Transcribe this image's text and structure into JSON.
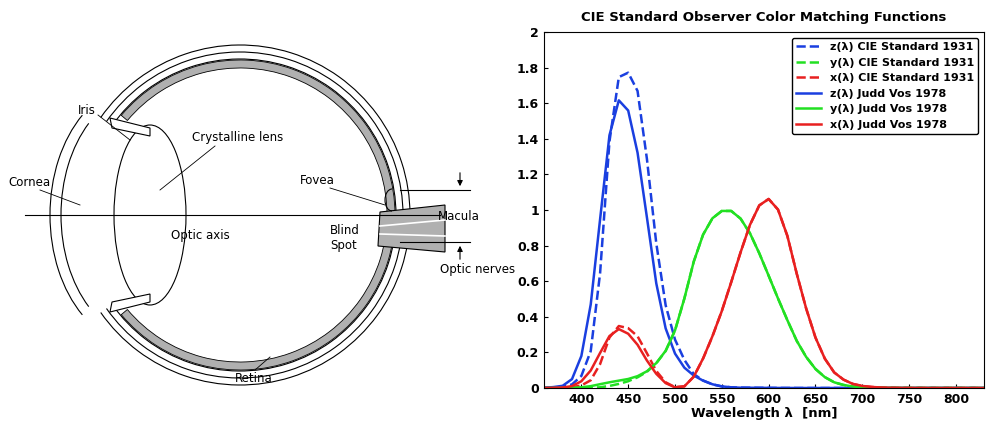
{
  "diagram": {
    "labels": {
      "iris": "Iris",
      "lens": "Crystalline lens",
      "cornea": "Cornea",
      "fovea": "Fovea",
      "macula": "Macula",
      "optic_axis": "Optic axis",
      "blind_spot": "Blind\nSpot",
      "optic_nerves": "Optic nerves",
      "retina": "Retina"
    }
  },
  "chart_data": {
    "type": "line",
    "title": "CIE Standard Observer Color Matching Functions",
    "x_label": "Wavelength λ  [nm]",
    "x": [
      360,
      370,
      380,
      390,
      400,
      410,
      420,
      430,
      440,
      450,
      460,
      470,
      480,
      490,
      500,
      510,
      520,
      530,
      540,
      550,
      560,
      570,
      580,
      590,
      600,
      610,
      620,
      630,
      640,
      650,
      660,
      670,
      680,
      690,
      700,
      710,
      720,
      730,
      740,
      750,
      760,
      770,
      780,
      790,
      800,
      810,
      820,
      830
    ],
    "xlim": [
      360,
      830
    ],
    "xticks": [
      400,
      450,
      500,
      550,
      600,
      650,
      700,
      750,
      800
    ],
    "ylim": [
      0,
      2
    ],
    "yticks": [
      0,
      0.2,
      0.4,
      0.6,
      0.8,
      1,
      1.2,
      1.4,
      1.6,
      1.8,
      2
    ],
    "grid": false,
    "legend": "upper right",
    "series": [
      {
        "name": "z(λ) CIE Standard 1931",
        "color": "#1a3fe0",
        "line_style": "dashed",
        "values": [
          0.0006,
          0.0019,
          0.0065,
          0.0201,
          0.0679,
          0.2074,
          0.6456,
          1.3856,
          1.7471,
          1.7721,
          1.6692,
          1.2876,
          0.813,
          0.4652,
          0.272,
          0.1582,
          0.0782,
          0.0422,
          0.0203,
          0.0087,
          0.0039,
          0.0021,
          0.0017,
          0.0011,
          0.0008,
          0.0003,
          0.0002,
          0,
          0,
          0,
          0,
          0,
          0,
          0,
          0,
          0,
          0,
          0,
          0,
          0,
          0,
          0,
          0,
          0,
          0,
          0,
          0,
          0
        ]
      },
      {
        "name": "y(λ) CIE Standard 1931",
        "color": "#22e022",
        "line_style": "dashed",
        "values": [
          0,
          0,
          0,
          0.0001,
          0.0004,
          0.0012,
          0.004,
          0.0116,
          0.023,
          0.038,
          0.06,
          0.091,
          0.139,
          0.208,
          0.323,
          0.503,
          0.71,
          0.862,
          0.954,
          0.995,
          0.995,
          0.952,
          0.87,
          0.757,
          0.631,
          0.503,
          0.381,
          0.265,
          0.175,
          0.107,
          0.061,
          0.032,
          0.017,
          0.0082,
          0.0041,
          0.0021,
          0.001,
          0.0005,
          0.0002,
          0.0001,
          0.0001,
          0,
          0,
          0,
          0,
          0,
          0,
          0
        ]
      },
      {
        "name": "x(λ) CIE Standard 1931",
        "color": "#e82020",
        "line_style": "dashed",
        "values": [
          0.0001,
          0.0004,
          0.0014,
          0.0042,
          0.0143,
          0.0435,
          0.1344,
          0.2839,
          0.3483,
          0.3362,
          0.2908,
          0.1954,
          0.0956,
          0.032,
          0.0049,
          0.0093,
          0.0633,
          0.1655,
          0.2904,
          0.4334,
          0.5945,
          0.7621,
          0.9163,
          1.0263,
          1.0622,
          1.0026,
          0.8544,
          0.6424,
          0.4479,
          0.2835,
          0.1649,
          0.0874,
          0.0468,
          0.0227,
          0.0114,
          0.0058,
          0.0029,
          0.0014,
          0.0007,
          0.0003,
          0.0002,
          0.0001,
          0,
          0,
          0,
          0,
          0,
          0
        ]
      },
      {
        "name": "z(λ) Judd Vos 1978",
        "color": "#1a3fe0",
        "line_style": "solid",
        "values": [
          0.0013,
          0.0051,
          0.0123,
          0.05,
          0.1798,
          0.4696,
          0.9485,
          1.4202,
          1.6165,
          1.5594,
          1.3224,
          0.9587,
          0.588,
          0.3351,
          0.1935,
          0.1142,
          0.0702,
          0.0412,
          0.0209,
          0.0091,
          0.0037,
          0.0017,
          0.0014,
          0.001,
          0.0007,
          0.0003,
          0.0002,
          0,
          0,
          0,
          0,
          0,
          0,
          0,
          0,
          0,
          0,
          0,
          0,
          0,
          0,
          0,
          0,
          0,
          0,
          0,
          0,
          0
        ]
      },
      {
        "name": "y(λ) Judd Vos 1978",
        "color": "#22e022",
        "line_style": "solid",
        "values": [
          0,
          0.0001,
          0.0003,
          0.0011,
          0.004,
          0.0104,
          0.0214,
          0.032,
          0.0414,
          0.0506,
          0.0665,
          0.094,
          0.1399,
          0.209,
          0.324,
          0.503,
          0.71,
          0.862,
          0.954,
          0.995,
          0.995,
          0.952,
          0.87,
          0.757,
          0.631,
          0.503,
          0.381,
          0.265,
          0.175,
          0.107,
          0.061,
          0.032,
          0.017,
          0.0082,
          0.0041,
          0.0021,
          0.001,
          0.0005,
          0.0002,
          0.0001,
          0.0001,
          0,
          0,
          0,
          0,
          0,
          0,
          0
        ]
      },
      {
        "name": "x(λ) Judd Vos 1978",
        "color": "#e82020",
        "line_style": "solid",
        "values": [
          0.0003,
          0.0011,
          0.0027,
          0.0106,
          0.0379,
          0.0985,
          0.1972,
          0.292,
          0.331,
          0.305,
          0.243,
          0.1545,
          0.0796,
          0.0273,
          0.0036,
          0.0092,
          0.0637,
          0.1664,
          0.2917,
          0.4327,
          0.5945,
          0.7622,
          0.9163,
          1.0263,
          1.0622,
          1.0026,
          0.8544,
          0.6424,
          0.4479,
          0.2835,
          0.1649,
          0.0874,
          0.0468,
          0.0227,
          0.0114,
          0.0058,
          0.0029,
          0.0014,
          0.0007,
          0.0003,
          0.0002,
          0.0001,
          0,
          0,
          0,
          0,
          0,
          0
        ]
      }
    ]
  }
}
